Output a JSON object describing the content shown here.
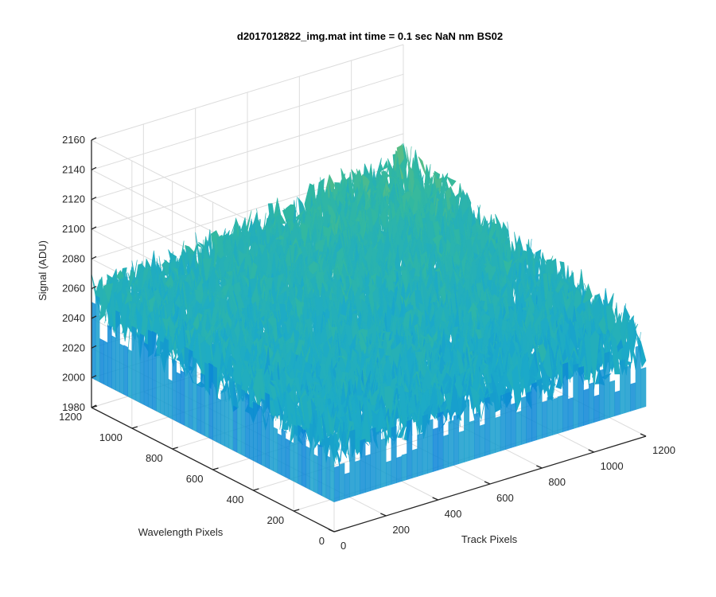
{
  "chart_data": {
    "type": "surface",
    "title": "d2017012822_img.mat int time = 0.1 sec  NaN nm BS02",
    "xlabel": "Track Pixels",
    "ylabel": "Wavelength Pixels",
    "zlabel": "Signal (ADU)",
    "xlim": [
      0,
      1200
    ],
    "ylim": [
      0,
      1200
    ],
    "zlim": [
      1980,
      2160
    ],
    "x_ticks": [
      "0",
      "200",
      "400",
      "600",
      "800",
      "1000",
      "1200"
    ],
    "y_ticks": [
      "0",
      "200",
      "400",
      "600",
      "800",
      "1000",
      "1200"
    ],
    "z_ticks": [
      "1980",
      "2000",
      "2020",
      "2040",
      "2060",
      "2080",
      "2100",
      "2120",
      "2140",
      "2160"
    ],
    "grid": true,
    "colormap": "parula",
    "surface_summary": {
      "baseline_min": 2005,
      "typical_range": [
        2020,
        2080
      ],
      "peak_max": 2150,
      "highest_region": "high track pixels, high wavelength pixels (back corner)"
    },
    "colors": {
      "low": "#0a84d8",
      "mid": "#2cb8a8",
      "high": "#e0c84a"
    }
  }
}
